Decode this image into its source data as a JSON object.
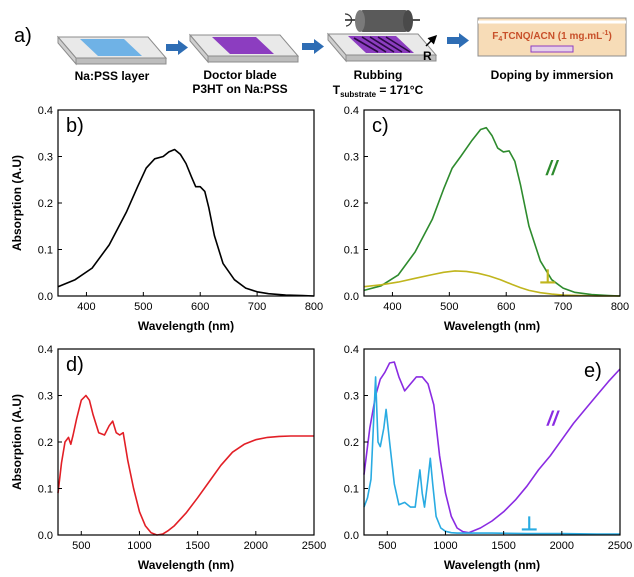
{
  "figure": {
    "panel_labels": [
      "a)",
      "b)",
      "c)",
      "d)",
      "e)"
    ],
    "process": {
      "step1": "Na:PSS layer",
      "step2_line1": "Doctor blade",
      "step2_line2": "P3HT on Na:PSS",
      "step3_line1": "Rubbing",
      "step3_line2_main": "T",
      "step3_line2_sub": "substrate",
      "step3_line2_tail": " = 171°C",
      "step3_arrow_label": "R",
      "step4": "Doping by immersion",
      "solution_main1": "F",
      "solution_sub1": "4",
      "solution_main2": "TCNQ/ACN (1 mg.mL",
      "solution_sup": "-1",
      "solution_main3": ")"
    },
    "colors": {
      "arrow": "#2e6db4",
      "substrate_top": "#e9e9e9",
      "substrate_edge": "#8c8c8c",
      "na_pss": "#6fb2e6",
      "p3ht": "#8c3dc0",
      "roller": "#5a5a5a",
      "beaker": "#f7dcb7",
      "solution_text": "#c8502a",
      "black": "#000000",
      "green": "#2e8b2e",
      "olive": "#c0b51d",
      "red": "#e21f26",
      "purple": "#8a2be2",
      "cyan": "#29abe2"
    }
  },
  "chart_data": [
    {
      "panel": "b)",
      "type": "line",
      "xlabel": "Wavelength (nm)",
      "ylabel": "Absorption (A.U)",
      "xlim": [
        350,
        800
      ],
      "ylim": [
        0,
        0.4
      ],
      "xticks": [
        400,
        500,
        600,
        700,
        800
      ],
      "yticks": [
        0.0,
        0.1,
        0.2,
        0.3,
        0.4
      ],
      "series": [
        {
          "color": "#000000",
          "x": [
            350,
            380,
            410,
            440,
            470,
            490,
            505,
            520,
            535,
            545,
            555,
            565,
            575,
            585,
            592,
            600,
            608,
            615,
            625,
            640,
            660,
            680,
            700,
            720,
            750,
            780,
            800
          ],
          "y": [
            0.02,
            0.035,
            0.06,
            0.11,
            0.18,
            0.235,
            0.275,
            0.295,
            0.3,
            0.31,
            0.315,
            0.305,
            0.285,
            0.255,
            0.235,
            0.235,
            0.225,
            0.19,
            0.13,
            0.07,
            0.035,
            0.017,
            0.009,
            0.005,
            0.002,
            0.001,
            0.0
          ]
        }
      ]
    },
    {
      "panel": "c)",
      "type": "line",
      "xlabel": "Wavelength (nm)",
      "ylabel": "",
      "xlim": [
        350,
        800
      ],
      "ylim": [
        0,
        0.4
      ],
      "xticks": [
        400,
        500,
        600,
        700,
        800
      ],
      "yticks": [
        0.0,
        0.1,
        0.2,
        0.3,
        0.4
      ],
      "annotations": [
        {
          "text": "//",
          "color": "#2e8b2e",
          "x": 680,
          "y": 0.26
        },
        {
          "text": "⊥",
          "color": "#c0b51d",
          "x": 673,
          "y": 0.027
        }
      ],
      "series": [
        {
          "color": "#2e8b2e",
          "x": [
            350,
            380,
            410,
            440,
            470,
            490,
            505,
            520,
            540,
            555,
            565,
            575,
            585,
            595,
            605,
            615,
            625,
            640,
            660,
            680,
            700,
            720,
            750,
            780,
            800
          ],
          "y": [
            0.012,
            0.022,
            0.045,
            0.095,
            0.165,
            0.23,
            0.275,
            0.3,
            0.335,
            0.358,
            0.362,
            0.345,
            0.318,
            0.31,
            0.312,
            0.29,
            0.24,
            0.15,
            0.075,
            0.035,
            0.017,
            0.008,
            0.003,
            0.001,
            0.0
          ]
        },
        {
          "color": "#c0b51d",
          "x": [
            350,
            380,
            410,
            440,
            470,
            490,
            510,
            530,
            550,
            570,
            590,
            610,
            625,
            640,
            660,
            680,
            700,
            730,
            760,
            800
          ],
          "y": [
            0.02,
            0.024,
            0.03,
            0.038,
            0.046,
            0.051,
            0.054,
            0.053,
            0.049,
            0.043,
            0.035,
            0.025,
            0.018,
            0.012,
            0.007,
            0.004,
            0.002,
            0.001,
            0.0,
            0.0
          ]
        }
      ]
    },
    {
      "panel": "d)",
      "type": "line",
      "xlabel": "Wavelength (nm)",
      "ylabel": "Absorption (A.U)",
      "xlim": [
        300,
        2500
      ],
      "ylim": [
        0,
        0.4
      ],
      "xticks": [
        500,
        1000,
        1500,
        2000,
        2500
      ],
      "yticks": [
        0.0,
        0.1,
        0.2,
        0.3,
        0.4
      ],
      "series": [
        {
          "color": "#e21f26",
          "x": [
            300,
            330,
            360,
            390,
            410,
            430,
            460,
            500,
            540,
            570,
            600,
            650,
            700,
            740,
            770,
            800,
            830,
            860,
            900,
            950,
            1000,
            1050,
            1100,
            1150,
            1200,
            1250,
            1300,
            1400,
            1500,
            1600,
            1700,
            1800,
            1900,
            2000,
            2100,
            2200,
            2300,
            2400,
            2500
          ],
          "y": [
            0.09,
            0.155,
            0.2,
            0.21,
            0.195,
            0.215,
            0.25,
            0.29,
            0.3,
            0.29,
            0.26,
            0.22,
            0.215,
            0.235,
            0.245,
            0.22,
            0.215,
            0.22,
            0.16,
            0.1,
            0.05,
            0.02,
            0.005,
            0.0,
            0.002,
            0.01,
            0.02,
            0.047,
            0.08,
            0.115,
            0.15,
            0.178,
            0.195,
            0.205,
            0.21,
            0.212,
            0.213,
            0.213,
            0.213
          ]
        }
      ]
    },
    {
      "panel": "e)",
      "type": "line",
      "xlabel": "Wavelength (nm)",
      "ylabel": "",
      "xlim": [
        300,
        2500
      ],
      "ylim": [
        0,
        0.4
      ],
      "xticks": [
        500,
        1000,
        1500,
        2000,
        2500
      ],
      "yticks": [
        0.0,
        0.1,
        0.2,
        0.3,
        0.4
      ],
      "annotations": [
        {
          "text": "//",
          "color": "#8a2be2",
          "x": 1920,
          "y": 0.235
        },
        {
          "text": "⊥",
          "color": "#29abe2",
          "x": 1720,
          "y": 0.01
        }
      ],
      "series": [
        {
          "color": "#8a2be2",
          "x": [
            300,
            350,
            400,
            440,
            480,
            520,
            560,
            600,
            650,
            700,
            750,
            800,
            850,
            900,
            950,
            1000,
            1050,
            1100,
            1150,
            1200,
            1300,
            1400,
            1500,
            1600,
            1700,
            1800,
            1900,
            2000,
            2100,
            2200,
            2300,
            2400,
            2500
          ],
          "y": [
            0.13,
            0.23,
            0.3,
            0.335,
            0.35,
            0.37,
            0.372,
            0.34,
            0.31,
            0.325,
            0.34,
            0.34,
            0.325,
            0.28,
            0.17,
            0.09,
            0.04,
            0.015,
            0.007,
            0.005,
            0.015,
            0.03,
            0.05,
            0.075,
            0.105,
            0.14,
            0.17,
            0.205,
            0.24,
            0.27,
            0.3,
            0.33,
            0.357
          ]
        },
        {
          "color": "#29abe2",
          "x": [
            300,
            330,
            360,
            380,
            400,
            420,
            440,
            470,
            490,
            520,
            560,
            600,
            650,
            700,
            740,
            760,
            780,
            800,
            820,
            850,
            870,
            890,
            920,
            960,
            1000,
            1050,
            1100,
            1200,
            1400,
            1700,
            2000,
            2300,
            2500
          ],
          "y": [
            0.06,
            0.08,
            0.12,
            0.23,
            0.34,
            0.2,
            0.19,
            0.23,
            0.27,
            0.2,
            0.11,
            0.065,
            0.07,
            0.06,
            0.06,
            0.1,
            0.14,
            0.09,
            0.06,
            0.12,
            0.165,
            0.11,
            0.04,
            0.015,
            0.008,
            0.005,
            0.004,
            0.004,
            0.004,
            0.003,
            0.003,
            0.002,
            0.002
          ]
        }
      ]
    }
  ]
}
